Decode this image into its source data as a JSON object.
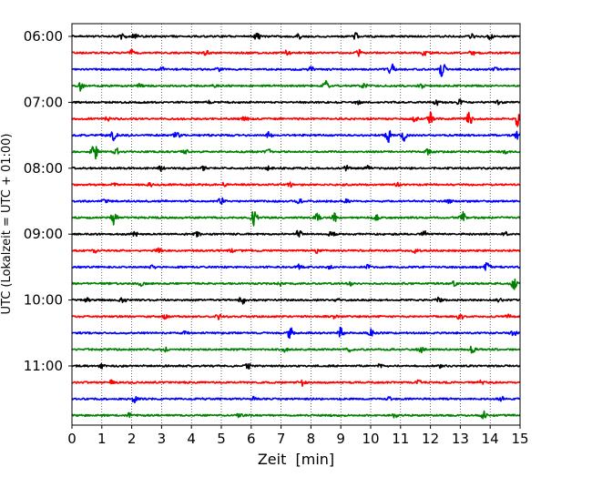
{
  "chart_data": {
    "type": "line",
    "title": "",
    "xlabel": "Zeit  [min]",
    "ylabel": "UTC (Lokalzeit = UTC + 01:00)",
    "xlim": [
      0,
      15
    ],
    "x_ticks": [
      0,
      1,
      2,
      3,
      4,
      5,
      6,
      7,
      8,
      9,
      10,
      11,
      12,
      13,
      14,
      15
    ],
    "y_tick_labels": [
      "06:00",
      "07:00",
      "08:00",
      "09:00",
      "10:00",
      "11:00"
    ],
    "y_tick_rows": [
      0,
      4,
      8,
      12,
      16,
      20
    ],
    "grid": "vertical dotted lines at each minute",
    "legend": "none",
    "trace_colors": [
      "#000000",
      "#ff0000",
      "#0000ff",
      "#008000"
    ],
    "trace_count": 24,
    "trace_interval_minutes": 15,
    "series": [
      {
        "row": 0,
        "start": "06:00",
        "color": "#000000",
        "events": [
          [
            1.7,
            0.5
          ],
          [
            2.1,
            0.4
          ],
          [
            6.2,
            0.7
          ],
          [
            7.6,
            0.4
          ],
          [
            9.5,
            0.5
          ],
          [
            13.4,
            0.4
          ],
          [
            14.0,
            0.5
          ]
        ]
      },
      {
        "row": 1,
        "start": "06:15",
        "color": "#ff0000",
        "events": [
          [
            2.0,
            0.4
          ],
          [
            4.5,
            0.3
          ],
          [
            7.2,
            0.4
          ],
          [
            9.6,
            0.5
          ],
          [
            11.8,
            0.4
          ],
          [
            13.4,
            0.4
          ]
        ]
      },
      {
        "row": 2,
        "start": "06:30",
        "color": "#0000ff",
        "events": [
          [
            3.0,
            0.3
          ],
          [
            4.9,
            0.3
          ],
          [
            8.0,
            0.4
          ],
          [
            10.7,
            0.9
          ],
          [
            12.4,
            1.2
          ],
          [
            14.2,
            0.3
          ]
        ]
      },
      {
        "row": 3,
        "start": "06:45",
        "color": "#008000",
        "events": [
          [
            0.3,
            0.7
          ],
          [
            2.3,
            0.4
          ],
          [
            4.8,
            0.3
          ],
          [
            8.5,
            0.7
          ],
          [
            9.8,
            0.4
          ],
          [
            11.7,
            0.4
          ]
        ]
      },
      {
        "row": 4,
        "start": "07:00",
        "color": "#000000",
        "events": [
          [
            4.6,
            0.3
          ],
          [
            9.6,
            0.3
          ],
          [
            12.2,
            0.4
          ],
          [
            13.0,
            0.5
          ],
          [
            14.3,
            0.3
          ]
        ]
      },
      {
        "row": 5,
        "start": "07:15",
        "color": "#ff0000",
        "events": [
          [
            1.2,
            0.3
          ],
          [
            5.8,
            0.3
          ],
          [
            11.5,
            0.7
          ],
          [
            12.0,
            0.9
          ],
          [
            13.3,
            1.0
          ],
          [
            14.9,
            1.2
          ]
        ]
      },
      {
        "row": 6,
        "start": "07:30",
        "color": "#0000ff",
        "events": [
          [
            1.4,
            0.7
          ],
          [
            3.5,
            0.5
          ],
          [
            6.6,
            0.5
          ],
          [
            10.6,
            1.0
          ],
          [
            11.1,
            0.8
          ],
          [
            14.9,
            0.7
          ]
        ]
      },
      {
        "row": 7,
        "start": "07:45",
        "color": "#008000",
        "events": [
          [
            0.75,
            1.5
          ],
          [
            1.5,
            0.5
          ],
          [
            3.8,
            0.3
          ],
          [
            6.6,
            0.3
          ],
          [
            11.9,
            0.4
          ],
          [
            14.5,
            0.3
          ]
        ]
      },
      {
        "row": 8,
        "start": "08:00",
        "color": "#000000",
        "events": [
          [
            3.0,
            0.4
          ],
          [
            4.4,
            0.3
          ],
          [
            6.6,
            0.3
          ],
          [
            9.2,
            0.3
          ],
          [
            9.9,
            0.3
          ]
        ]
      },
      {
        "row": 9,
        "start": "08:15",
        "color": "#ff0000",
        "events": [
          [
            1.4,
            0.4
          ],
          [
            2.6,
            0.3
          ],
          [
            5.1,
            0.3
          ],
          [
            7.3,
            0.3
          ],
          [
            10.9,
            0.3
          ]
        ]
      },
      {
        "row": 10,
        "start": "08:30",
        "color": "#0000ff",
        "events": [
          [
            1.1,
            0.3
          ],
          [
            5.0,
            0.6
          ],
          [
            7.6,
            0.4
          ],
          [
            9.2,
            0.4
          ],
          [
            12.6,
            0.3
          ]
        ]
      },
      {
        "row": 11,
        "start": "08:45",
        "color": "#008000",
        "events": [
          [
            1.4,
            1.1
          ],
          [
            6.1,
            1.3
          ],
          [
            8.2,
            0.6
          ],
          [
            8.8,
            0.7
          ],
          [
            10.2,
            0.6
          ],
          [
            13.1,
            0.9
          ]
        ]
      },
      {
        "row": 12,
        "start": "09:00",
        "color": "#000000",
        "events": [
          [
            2.1,
            0.4
          ],
          [
            4.2,
            0.4
          ],
          [
            7.6,
            0.6
          ],
          [
            8.7,
            0.5
          ],
          [
            11.8,
            0.4
          ],
          [
            14.5,
            0.3
          ]
        ]
      },
      {
        "row": 13,
        "start": "09:15",
        "color": "#ff0000",
        "events": [
          [
            0.8,
            0.3
          ],
          [
            2.9,
            0.4
          ],
          [
            5.3,
            0.3
          ],
          [
            8.2,
            0.3
          ],
          [
            11.5,
            0.3
          ]
        ]
      },
      {
        "row": 14,
        "start": "09:30",
        "color": "#0000ff",
        "events": [
          [
            2.7,
            0.3
          ],
          [
            7.6,
            0.4
          ],
          [
            8.6,
            0.4
          ],
          [
            9.9,
            0.3
          ],
          [
            13.9,
            0.7
          ]
        ]
      },
      {
        "row": 15,
        "start": "09:45",
        "color": "#008000",
        "events": [
          [
            2.3,
            0.3
          ],
          [
            7.0,
            0.3
          ],
          [
            9.3,
            0.3
          ],
          [
            12.8,
            0.4
          ],
          [
            14.8,
            0.9
          ]
        ]
      },
      {
        "row": 16,
        "start": "10:00",
        "color": "#000000",
        "events": [
          [
            0.5,
            0.3
          ],
          [
            1.7,
            0.4
          ],
          [
            5.7,
            0.6
          ],
          [
            8.9,
            0.3
          ],
          [
            12.3,
            0.5
          ],
          [
            14.3,
            0.3
          ]
        ]
      },
      {
        "row": 17,
        "start": "10:15",
        "color": "#ff0000",
        "events": [
          [
            3.1,
            0.3
          ],
          [
            4.9,
            0.4
          ],
          [
            8.8,
            0.3
          ],
          [
            13.0,
            0.6
          ],
          [
            14.6,
            0.3
          ]
        ]
      },
      {
        "row": 18,
        "start": "10:30",
        "color": "#0000ff",
        "events": [
          [
            3.8,
            0.3
          ],
          [
            7.3,
            1.1
          ],
          [
            9.0,
            0.8
          ],
          [
            10.0,
            0.6
          ],
          [
            14.8,
            0.4
          ]
        ]
      },
      {
        "row": 19,
        "start": "10:45",
        "color": "#008000",
        "events": [
          [
            3.1,
            0.3
          ],
          [
            7.1,
            0.3
          ],
          [
            9.3,
            0.3
          ],
          [
            11.7,
            0.4
          ],
          [
            13.4,
            0.5
          ]
        ]
      },
      {
        "row": 20,
        "start": "11:00",
        "color": "#000000",
        "events": [
          [
            1.0,
            0.3
          ],
          [
            5.9,
            0.4
          ],
          [
            10.3,
            0.3
          ],
          [
            12.3,
            0.3
          ]
        ]
      },
      {
        "row": 21,
        "start": "11:15",
        "color": "#ff0000",
        "events": [
          [
            1.3,
            0.3
          ],
          [
            7.7,
            0.6
          ],
          [
            11.6,
            0.3
          ],
          [
            13.7,
            0.3
          ]
        ]
      },
      {
        "row": 22,
        "start": "11:30",
        "color": "#0000ff",
        "events": [
          [
            2.1,
            0.5
          ],
          [
            6.1,
            0.3
          ],
          [
            10.6,
            0.3
          ],
          [
            14.4,
            0.3
          ]
        ]
      },
      {
        "row": 23,
        "start": "11:45",
        "color": "#008000",
        "events": [
          [
            1.9,
            0.3
          ],
          [
            5.6,
            0.3
          ],
          [
            10.8,
            0.3
          ],
          [
            13.8,
            0.6
          ]
        ]
      }
    ]
  }
}
